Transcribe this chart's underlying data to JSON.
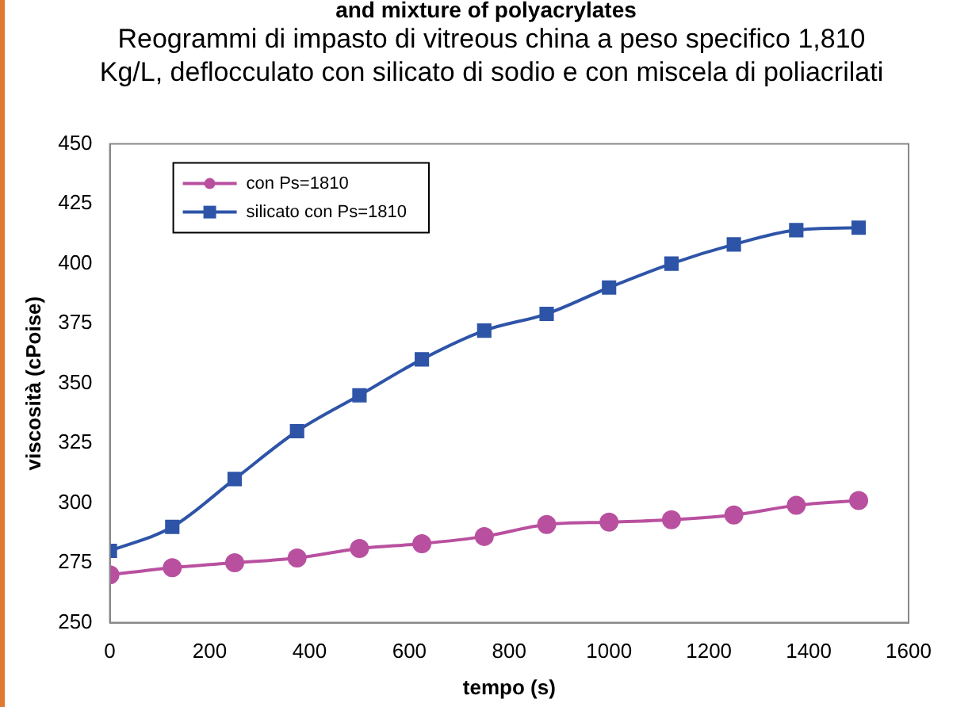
{
  "chart_data": {
    "type": "line",
    "title": "and mixture of polyacrylates",
    "subtitle": "Reogrammi di impasto di vitreous china a peso specifico 1,810 Kg/L, deflocculato con silicato di sodio e con miscela di poliacrilati",
    "xlabel": "tempo (s)",
    "ylabel": "viscosità (cPoise)",
    "x": [
      0,
      125,
      250,
      375,
      500,
      625,
      750,
      875,
      1000,
      1125,
      1250,
      1375,
      1500
    ],
    "series": [
      {
        "name": "con Ps=1810",
        "color": "#b9509f",
        "marker": "circle",
        "values": [
          270,
          273,
          275,
          277,
          281,
          283,
          286,
          291,
          292,
          293,
          295,
          299,
          301
        ]
      },
      {
        "name": "silicato con Ps=1810",
        "color": "#2e54a8",
        "marker": "square",
        "values": [
          280,
          290,
          310,
          330,
          345,
          360,
          372,
          379,
          390,
          400,
          408,
          414,
          415
        ]
      }
    ],
    "xlim": [
      0,
      1600
    ],
    "xticks": [
      0,
      200,
      400,
      600,
      800,
      1000,
      1200,
      1400,
      1600
    ],
    "ylim": [
      250,
      450
    ],
    "yticks": [
      250,
      275,
      300,
      325,
      350,
      375,
      400,
      425,
      450
    ],
    "grid": false,
    "legend": "top left",
    "line_style": "solid"
  }
}
